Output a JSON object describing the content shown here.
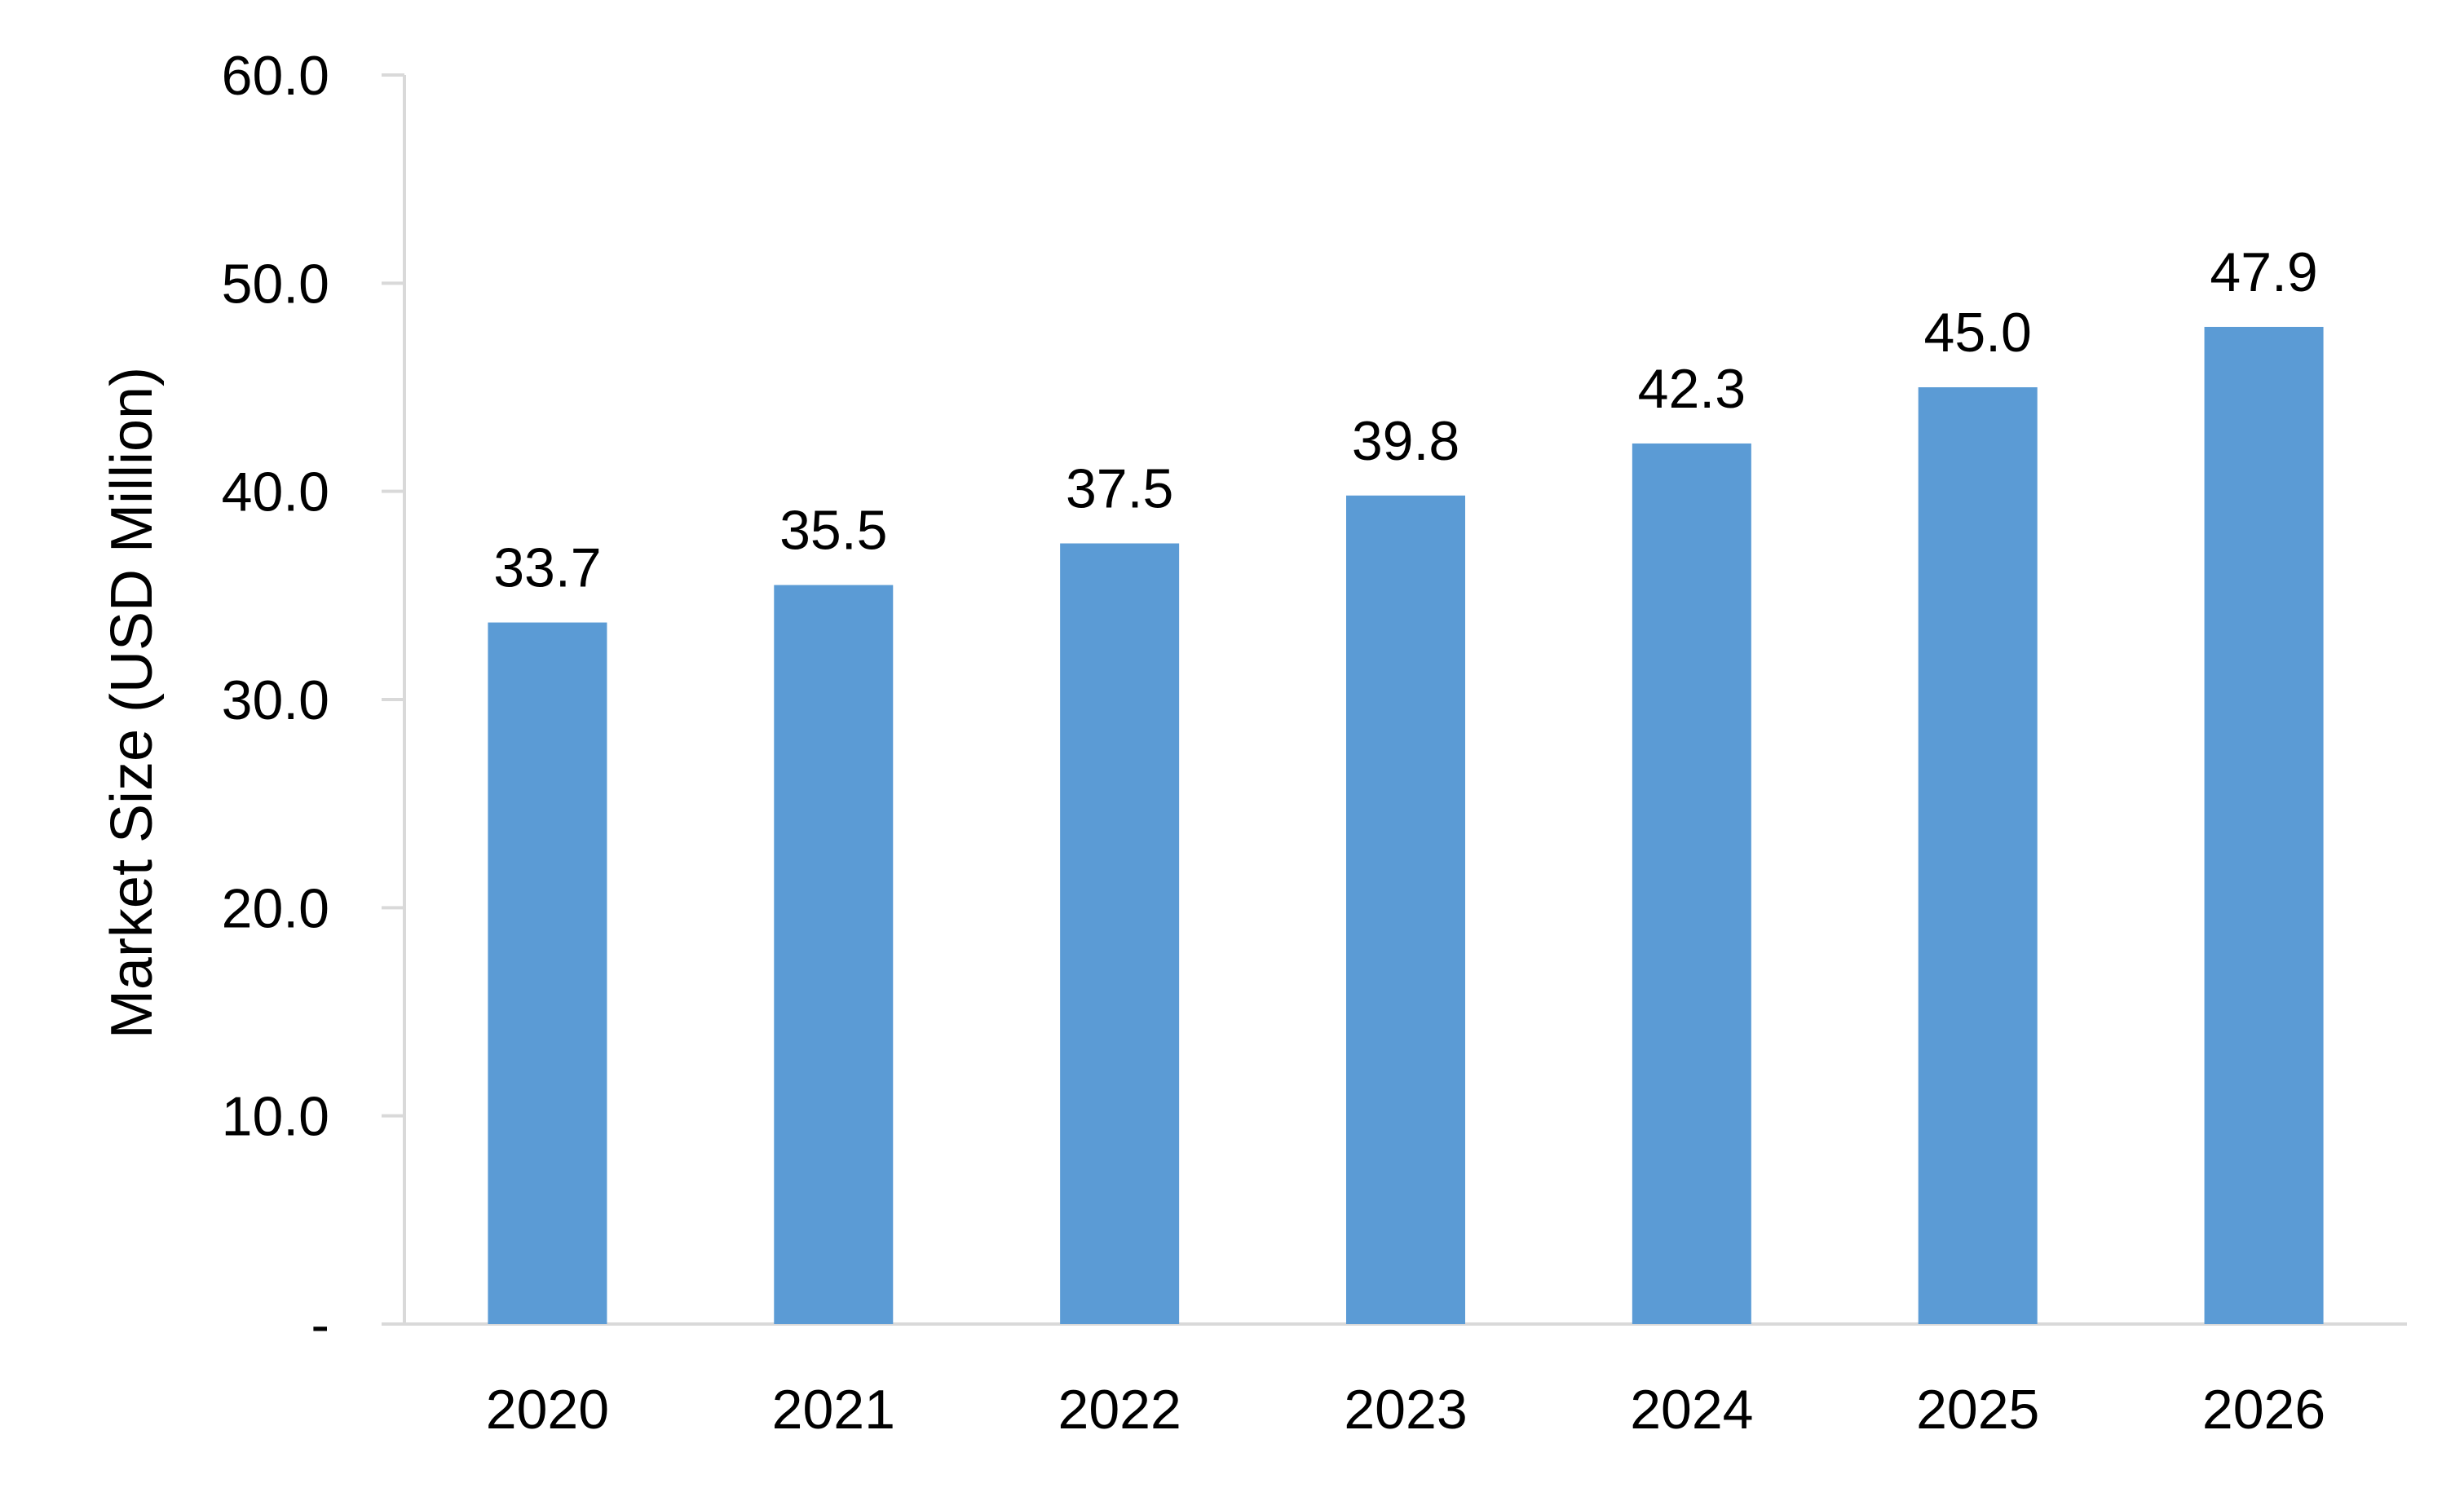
{
  "chart_data": {
    "type": "bar",
    "title": "",
    "xlabel": "",
    "ylabel": "Market Size (USD Million)",
    "categories": [
      "2020",
      "2021",
      "2022",
      "2023",
      "2024",
      "2025",
      "2026"
    ],
    "values": [
      33.7,
      35.5,
      37.5,
      39.8,
      42.3,
      45.0,
      47.9
    ],
    "data_labels": [
      "33.7",
      "35.5",
      "37.5",
      "39.8",
      "42.3",
      "45.0",
      "47.9"
    ],
    "ylim": [
      0,
      60
    ],
    "y_ticks": [
      0,
      10,
      20,
      30,
      40,
      50,
      60
    ],
    "y_tick_labels": [
      "-",
      "10.0",
      "20.0",
      "30.0",
      "40.0",
      "50.0",
      "60.0"
    ],
    "grid": false,
    "legend": "none",
    "bar_color": "#5B9BD5",
    "axis_color": "#D9D9D9"
  }
}
